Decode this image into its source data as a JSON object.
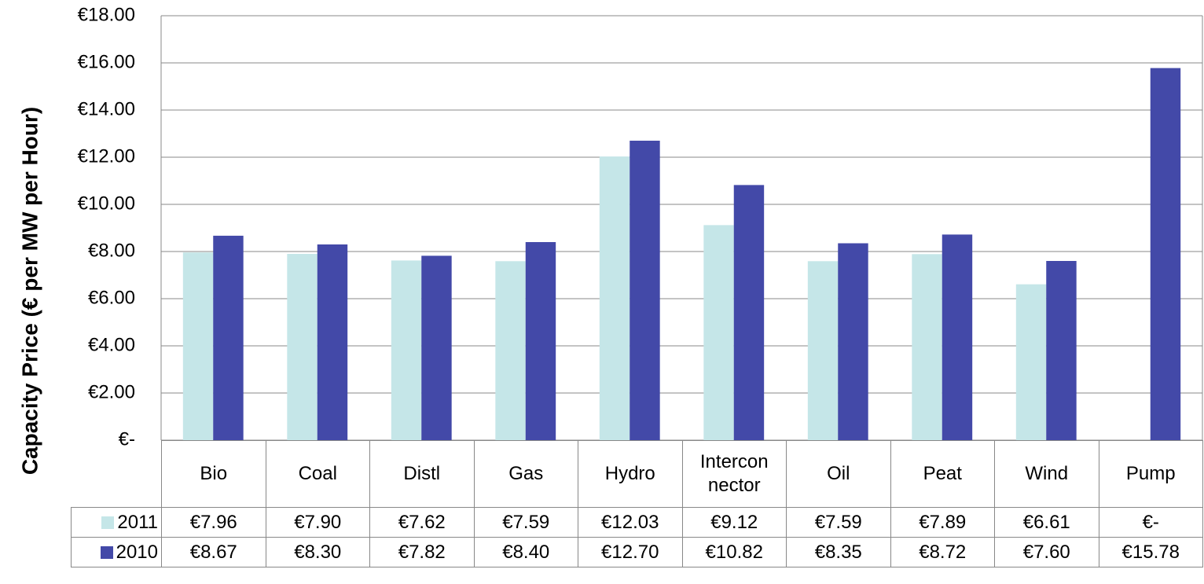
{
  "chart_data": {
    "type": "bar",
    "y_axis_label": "Capacity Price (€ per MW per Hour)",
    "categories": [
      "Bio",
      "Coal",
      "Distl",
      "Gas",
      "Hydro",
      "Interconnector",
      "Oil",
      "Peat",
      "Wind",
      "Pump"
    ],
    "series": [
      {
        "name": "2011",
        "color": "#c5e6e8",
        "values": [
          7.96,
          7.9,
          7.62,
          7.59,
          12.03,
          9.12,
          7.59,
          7.89,
          6.61,
          0
        ],
        "value_labels": [
          "€7.96",
          "€7.90",
          "€7.62",
          "€7.59",
          "€12.03",
          "€9.12",
          "€7.59",
          "€7.89",
          "€6.61",
          "€-"
        ]
      },
      {
        "name": "2010",
        "color": "#4349a8",
        "values": [
          8.67,
          8.3,
          7.82,
          8.4,
          12.7,
          10.82,
          8.35,
          8.72,
          7.6,
          15.78
        ],
        "value_labels": [
          "€8.67",
          "€8.30",
          "€7.82",
          "€8.40",
          "€12.70",
          "€10.82",
          "€8.35",
          "€8.72",
          "€7.60",
          "€15.78"
        ]
      }
    ],
    "ylim": [
      0,
      18
    ],
    "yticks": [
      {
        "value": 0,
        "label": "€-"
      },
      {
        "value": 2,
        "label": "€2.00"
      },
      {
        "value": 4,
        "label": "€4.00"
      },
      {
        "value": 6,
        "label": "€6.00"
      },
      {
        "value": 8,
        "label": "€8.00"
      },
      {
        "value": 10,
        "label": "€10.00"
      },
      {
        "value": 12,
        "label": "€12.00"
      },
      {
        "value": 14,
        "label": "€14.00"
      },
      {
        "value": 16,
        "label": "€16.00"
      },
      {
        "value": 18,
        "label": "€18.00"
      }
    ],
    "grid": true
  }
}
